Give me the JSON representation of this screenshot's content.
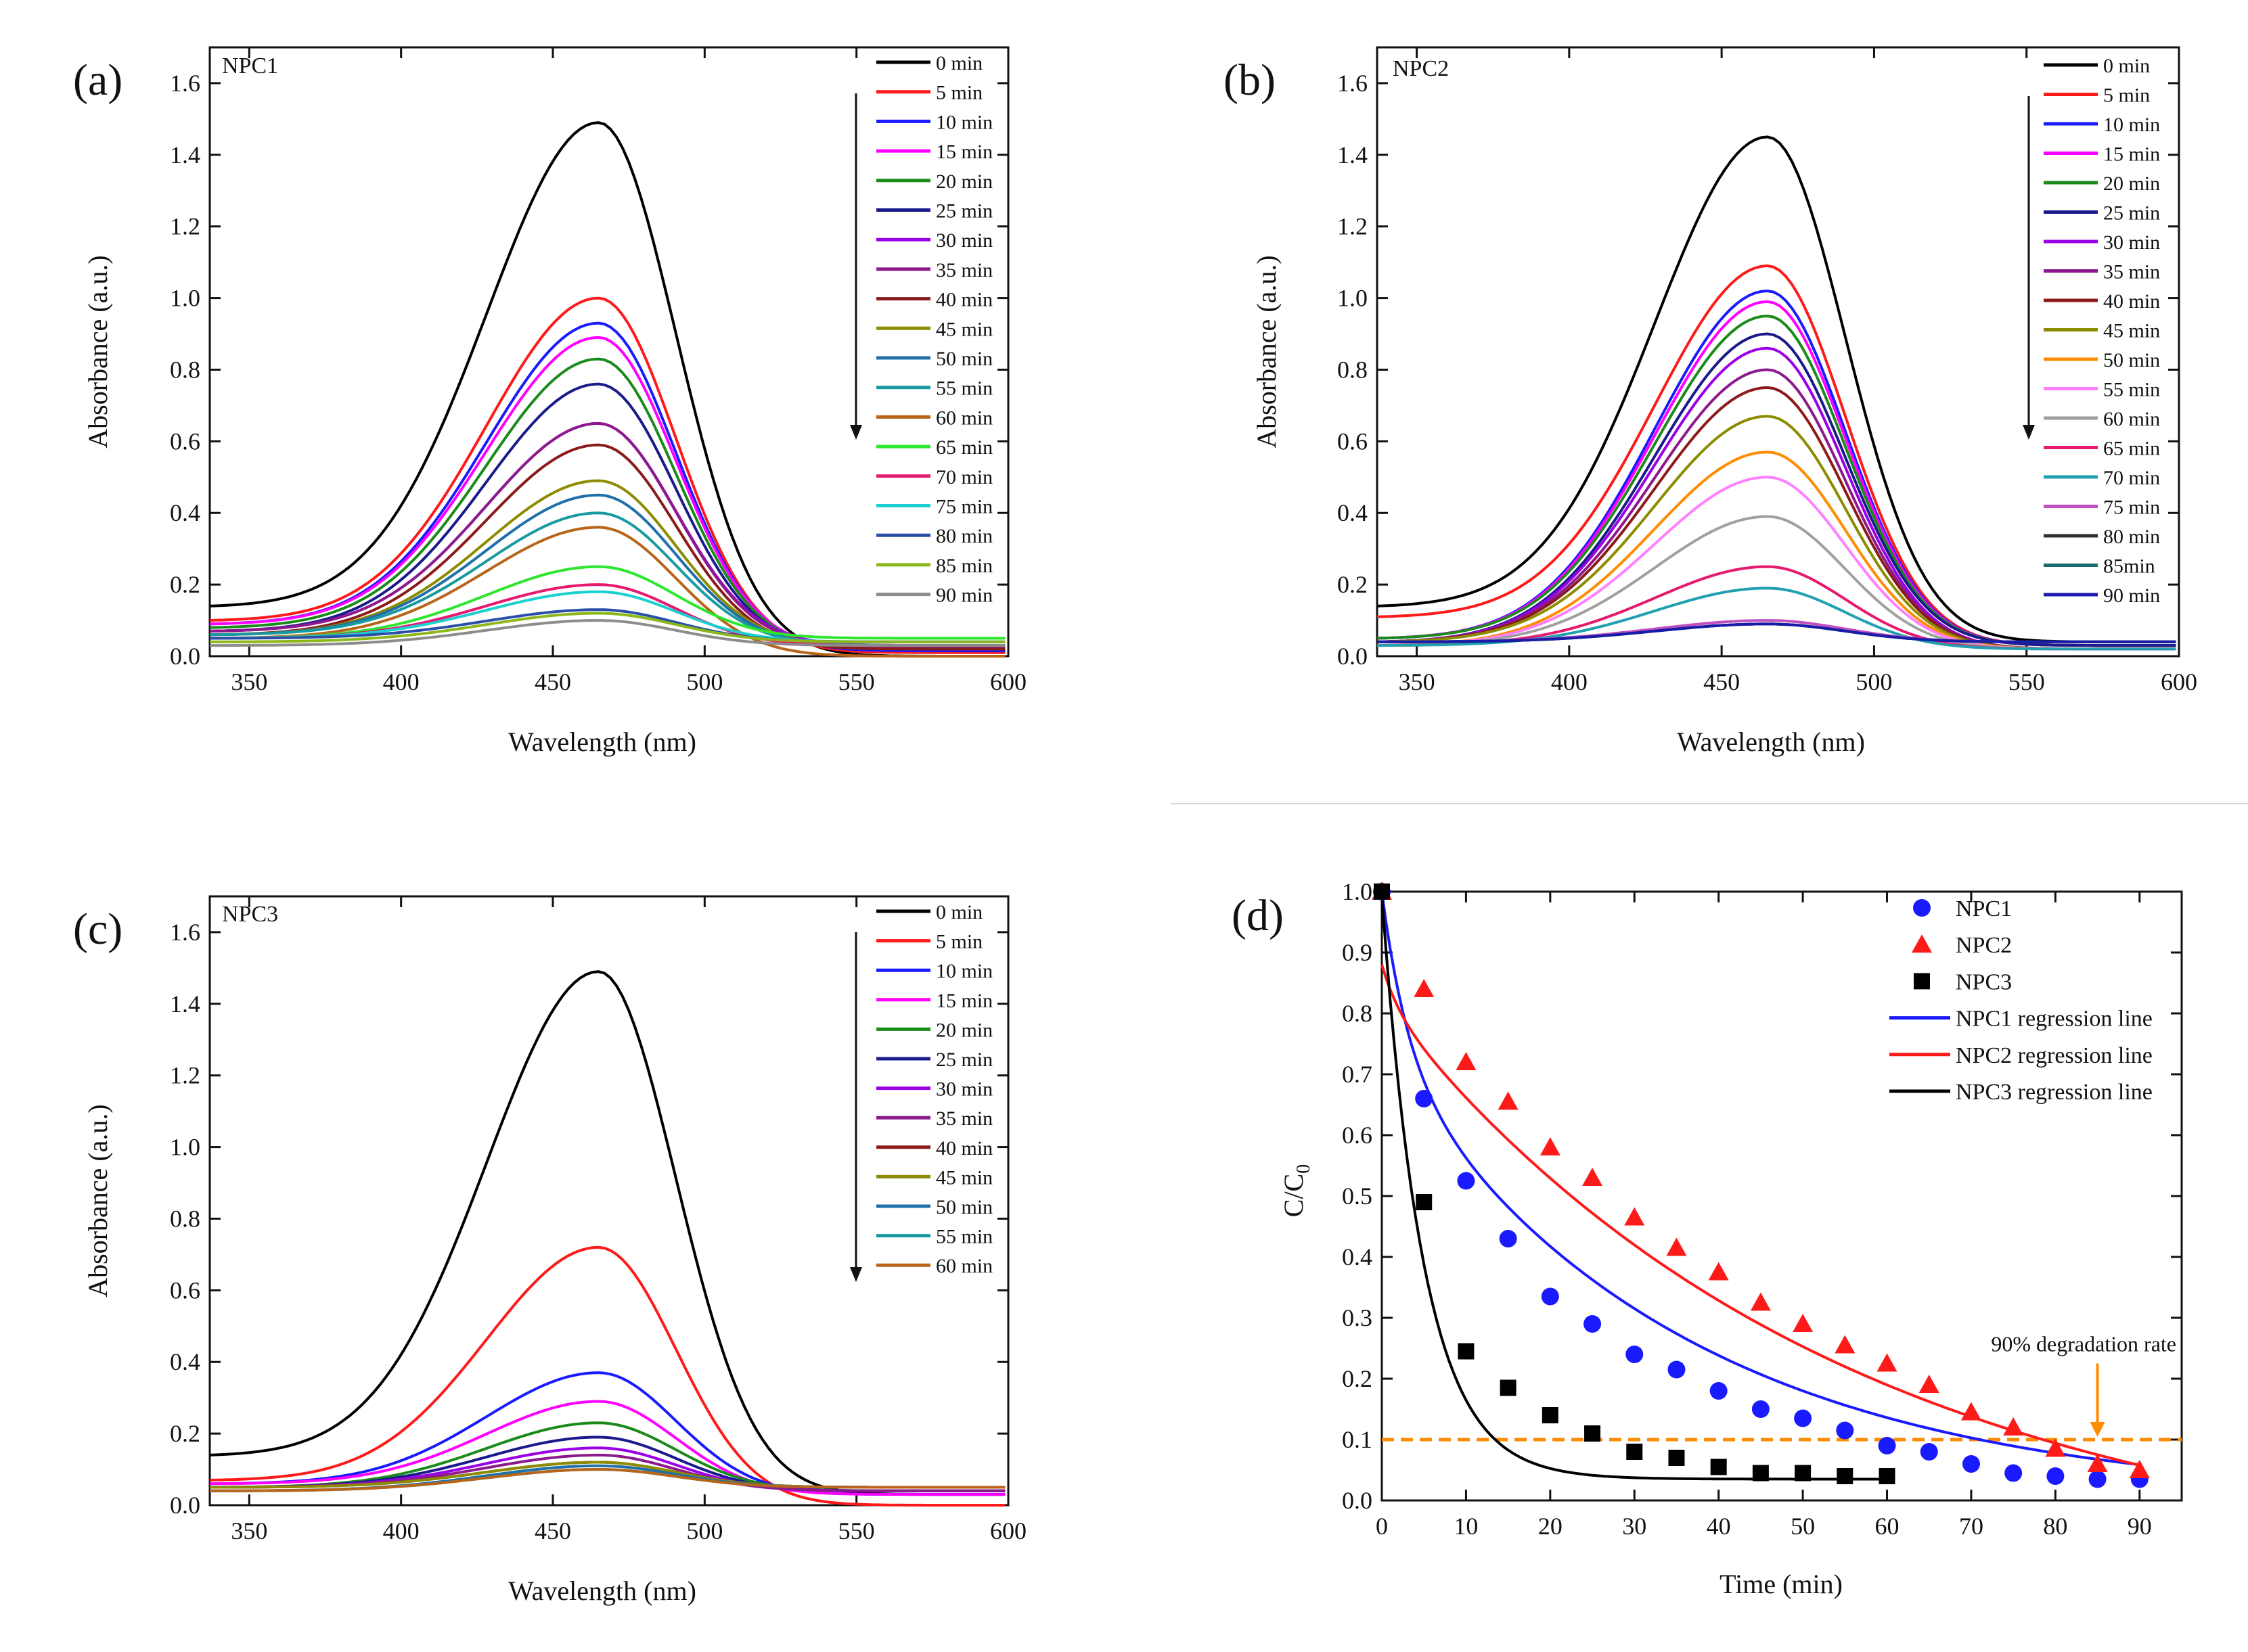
{
  "colors": {
    "c0": "#000000",
    "c5": "#ff1a1a",
    "c10": "#1a1aff",
    "c15": "#ff00ff",
    "c20": "#1a8a1a",
    "c25": "#1a1a8c",
    "c30": "#9a00e6",
    "c35": "#8c1a8c",
    "c40": "#8c1a1a",
    "c45": "#8c8c00",
    "c50": "#1f6fa8",
    "c55": "#1a9aa0",
    "c60": "#b8651a",
    "c65": "#2ee62e",
    "c70": "#e6196e",
    "c75": "#1ad0d0",
    "c80": "#2a4fa8",
    "c85": "#8cb81a",
    "c90": "#8c8c8c",
    "orange": "#ff8c00",
    "pink2": "#ff80ff",
    "gray2": "#a0a0a0",
    "teal2": "#20a0b0",
    "magenta2": "#c050c0",
    "dark80": "#303030",
    "teal85": "#1a6e6e",
    "blue90": "#1a1aaa"
  },
  "chart_data": [
    {
      "type": "line",
      "panel_label": "(a)",
      "title": "NPC1",
      "xlabel": "Wavelength (nm)",
      "ylabel": "Absorbance (a.u.)",
      "xlim": [
        337,
        600
      ],
      "ylim": [
        0,
        1.7
      ],
      "xticks": [
        "350",
        "400",
        "450",
        "500",
        "550",
        "600"
      ],
      "yticks": [
        "0.0",
        "0.2",
        "0.4",
        "0.6",
        "0.8",
        "1.0",
        "1.2",
        "1.4",
        "1.6"
      ],
      "peak_nm": 465,
      "series": [
        {
          "name": "0 min",
          "peak": 1.49,
          "base": 0.14,
          "tail": 0.0,
          "color": "#000000"
        },
        {
          "name": "5 min",
          "peak": 1.0,
          "base": 0.1,
          "tail": 0.01,
          "color": "#ff1a1a"
        },
        {
          "name": "10 min",
          "peak": 0.93,
          "base": 0.09,
          "tail": 0.015,
          "color": "#1a1aff"
        },
        {
          "name": "15 min",
          "peak": 0.89,
          "base": 0.09,
          "tail": 0.02,
          "color": "#ff00ff"
        },
        {
          "name": "20 min",
          "peak": 0.83,
          "base": 0.08,
          "tail": 0.02,
          "color": "#1a8a1a"
        },
        {
          "name": "25 min",
          "peak": 0.76,
          "base": 0.07,
          "tail": 0.02,
          "color": "#1a1a8c"
        },
        {
          "name": "30 min",
          "peak": 0.65,
          "base": 0.07,
          "tail": 0.03,
          "color": "#9a00e6"
        },
        {
          "name": "35 min",
          "peak": 0.65,
          "base": 0.07,
          "tail": 0.025,
          "color": "#8c1a8c"
        },
        {
          "name": "40 min",
          "peak": 0.59,
          "base": 0.06,
          "tail": 0.02,
          "color": "#8c1a1a"
        },
        {
          "name": "45 min",
          "peak": 0.49,
          "base": 0.06,
          "tail": 0.03,
          "color": "#8c8c00"
        },
        {
          "name": "50 min",
          "peak": 0.45,
          "base": 0.06,
          "tail": 0.03,
          "color": "#1f6fa8"
        },
        {
          "name": "55 min",
          "peak": 0.4,
          "base": 0.06,
          "tail": 0.03,
          "color": "#1a9aa0"
        },
        {
          "name": "60 min",
          "peak": 0.36,
          "base": 0.05,
          "tail": 0.0,
          "color": "#b8651a"
        },
        {
          "name": "65 min",
          "peak": 0.25,
          "base": 0.05,
          "tail": 0.05,
          "color": "#2ee62e"
        },
        {
          "name": "70 min",
          "peak": 0.2,
          "base": 0.05,
          "tail": 0.03,
          "color": "#e6196e"
        },
        {
          "name": "75 min",
          "peak": 0.18,
          "base": 0.05,
          "tail": 0.04,
          "color": "#1ad0d0"
        },
        {
          "name": "80 min",
          "peak": 0.13,
          "base": 0.05,
          "tail": 0.04,
          "color": "#2a4fa8"
        },
        {
          "name": "85 min",
          "peak": 0.12,
          "base": 0.04,
          "tail": 0.04,
          "color": "#8cb81a"
        },
        {
          "name": "90 min",
          "peak": 0.1,
          "base": 0.03,
          "tail": 0.03,
          "color": "#8c8c8c"
        }
      ]
    },
    {
      "type": "line",
      "panel_label": "(b)",
      "title": "NPC2",
      "xlabel": "Wavelength (nm)",
      "ylabel": "Absorbance (a.u.)",
      "xlim": [
        337,
        600
      ],
      "ylim": [
        0,
        1.7
      ],
      "xticks": [
        "350",
        "400",
        "450",
        "500",
        "550",
        "600"
      ],
      "yticks": [
        "0.0",
        "0.2",
        "0.4",
        "0.6",
        "0.8",
        "1.0",
        "1.2",
        "1.4",
        "1.6"
      ],
      "peak_nm": 465,
      "series": [
        {
          "name": "0 min",
          "peak": 1.45,
          "base": 0.14,
          "tail": 0.04,
          "color": "#000000"
        },
        {
          "name": "5 min",
          "peak": 1.09,
          "base": 0.11,
          "tail": 0.03,
          "color": "#ff1a1a"
        },
        {
          "name": "10 min",
          "peak": 1.02,
          "base": 0.05,
          "tail": 0.03,
          "color": "#1a1aff"
        },
        {
          "name": "15 min",
          "peak": 0.99,
          "base": 0.05,
          "tail": 0.03,
          "color": "#ff00ff"
        },
        {
          "name": "20 min",
          "peak": 0.95,
          "base": 0.05,
          "tail": 0.03,
          "color": "#1a8a1a"
        },
        {
          "name": "25 min",
          "peak": 0.9,
          "base": 0.04,
          "tail": 0.03,
          "color": "#1a1a8c"
        },
        {
          "name": "30 min",
          "peak": 0.86,
          "base": 0.04,
          "tail": 0.02,
          "color": "#9a00e6"
        },
        {
          "name": "35 min",
          "peak": 0.8,
          "base": 0.04,
          "tail": 0.02,
          "color": "#8c1a8c"
        },
        {
          "name": "40 min",
          "peak": 0.75,
          "base": 0.04,
          "tail": 0.02,
          "color": "#8c1a1a"
        },
        {
          "name": "45 min",
          "peak": 0.67,
          "base": 0.04,
          "tail": 0.02,
          "color": "#8c8c00"
        },
        {
          "name": "50 min",
          "peak": 0.57,
          "base": 0.03,
          "tail": 0.02,
          "color": "#ff8c00"
        },
        {
          "name": "55 min",
          "peak": 0.5,
          "base": 0.03,
          "tail": 0.02,
          "color": "#ff80ff"
        },
        {
          "name": "60 min",
          "peak": 0.39,
          "base": 0.03,
          "tail": 0.02,
          "color": "#a0a0a0"
        },
        {
          "name": "65 min",
          "peak": 0.25,
          "base": 0.03,
          "tail": 0.02,
          "color": "#e6196e"
        },
        {
          "name": "70 min",
          "peak": 0.19,
          "base": 0.03,
          "tail": 0.02,
          "color": "#20a0b0"
        },
        {
          "name": "75 min",
          "peak": 0.1,
          "base": 0.04,
          "tail": 0.04,
          "color": "#c050c0"
        },
        {
          "name": "80 min",
          "peak": 0.09,
          "base": 0.04,
          "tail": 0.04,
          "color": "#303030"
        },
        {
          "name": "85min",
          "peak": 0.09,
          "base": 0.04,
          "tail": 0.04,
          "color": "#1a6e6e"
        },
        {
          "name": "90 min",
          "peak": 0.09,
          "base": 0.04,
          "tail": 0.04,
          "color": "#1a1aaa"
        }
      ]
    },
    {
      "type": "line",
      "panel_label": "(c)",
      "title": "NPC3",
      "xlabel": "Wavelength (nm)",
      "ylabel": "Absorbance (a.u.)",
      "xlim": [
        337,
        600
      ],
      "ylim": [
        0,
        1.7
      ],
      "xticks": [
        "350",
        "400",
        "450",
        "500",
        "550",
        "600"
      ],
      "yticks": [
        "0.0",
        "0.2",
        "0.4",
        "0.6",
        "0.8",
        "1.0",
        "1.2",
        "1.4",
        "1.6"
      ],
      "peak_nm": 465,
      "series": [
        {
          "name": "0 min",
          "peak": 1.49,
          "base": 0.14,
          "tail": 0.03,
          "color": "#000000"
        },
        {
          "name": "5 min",
          "peak": 0.72,
          "base": 0.07,
          "tail": 0.0,
          "color": "#ff1a1a"
        },
        {
          "name": "10 min",
          "peak": 0.37,
          "base": 0.06,
          "tail": 0.03,
          "color": "#1a1aff"
        },
        {
          "name": "15 min",
          "peak": 0.29,
          "base": 0.06,
          "tail": 0.03,
          "color": "#ff00ff"
        },
        {
          "name": "20 min",
          "peak": 0.23,
          "base": 0.05,
          "tail": 0.04,
          "color": "#1a8a1a"
        },
        {
          "name": "25 min",
          "peak": 0.19,
          "base": 0.05,
          "tail": 0.04,
          "color": "#1a1a8c"
        },
        {
          "name": "30 min",
          "peak": 0.16,
          "base": 0.05,
          "tail": 0.04,
          "color": "#9a00e6"
        },
        {
          "name": "35 min",
          "peak": 0.14,
          "base": 0.05,
          "tail": 0.04,
          "color": "#8c1a8c"
        },
        {
          "name": "40 min",
          "peak": 0.12,
          "base": 0.05,
          "tail": 0.05,
          "color": "#8c1a1a"
        },
        {
          "name": "45 min",
          "peak": 0.12,
          "base": 0.05,
          "tail": 0.05,
          "color": "#8c8c00"
        },
        {
          "name": "50 min",
          "peak": 0.11,
          "base": 0.04,
          "tail": 0.05,
          "color": "#1f6fa8"
        },
        {
          "name": "55 min",
          "peak": 0.1,
          "base": 0.04,
          "tail": 0.05,
          "color": "#1a9aa0"
        },
        {
          "name": "60 min",
          "peak": 0.1,
          "base": 0.04,
          "tail": 0.05,
          "color": "#b8651a"
        }
      ]
    },
    {
      "type": "scatter",
      "panel_label": "(d)",
      "xlabel": "Time (min)",
      "ylabel": "C/C",
      "ylabel_sub": "0",
      "xlim": [
        0,
        95
      ],
      "ylim": [
        0,
        1.0
      ],
      "xticks": [
        "0",
        "10",
        "20",
        "30",
        "40",
        "50",
        "60",
        "70",
        "80",
        "90"
      ],
      "yticks": [
        "0.0",
        "0.1",
        "0.2",
        "0.3",
        "0.4",
        "0.5",
        "0.6",
        "0.7",
        "0.8",
        "0.9",
        "1.0"
      ],
      "threshold": {
        "y": 0.1,
        "label": "90% degradation rate",
        "arrow_x": 85,
        "color": "#ff8c00"
      },
      "series": [
        {
          "name": "NPC1",
          "marker": "circle",
          "color": "#1a1aff",
          "x": [
            0,
            5,
            10,
            15,
            20,
            25,
            30,
            35,
            40,
            45,
            50,
            55,
            60,
            65,
            70,
            75,
            80,
            85,
            90
          ],
          "y": [
            1.0,
            0.66,
            0.525,
            0.43,
            0.335,
            0.29,
            0.24,
            0.215,
            0.18,
            0.15,
            0.135,
            0.115,
            0.09,
            0.08,
            0.06,
            0.045,
            0.04,
            0.035,
            0.035
          ]
        },
        {
          "name": "NPC2",
          "marker": "triangle",
          "color": "#ff1a1a",
          "x": [
            0,
            5,
            10,
            15,
            20,
            25,
            30,
            35,
            40,
            45,
            50,
            55,
            60,
            65,
            70,
            75,
            80,
            85,
            90
          ],
          "y": [
            1.0,
            0.84,
            0.72,
            0.655,
            0.58,
            0.53,
            0.465,
            0.415,
            0.375,
            0.325,
            0.29,
            0.255,
            0.225,
            0.19,
            0.145,
            0.12,
            0.085,
            0.06,
            0.05
          ]
        },
        {
          "name": "NPC3",
          "marker": "square",
          "color": "#000000",
          "x": [
            0,
            5,
            10,
            15,
            20,
            25,
            30,
            35,
            40,
            45,
            50,
            55,
            60
          ],
          "y": [
            1.0,
            0.49,
            0.245,
            0.185,
            0.14,
            0.11,
            0.08,
            0.07,
            0.055,
            0.045,
            0.045,
            0.04,
            0.04
          ]
        }
      ],
      "regression": [
        {
          "name": "NPC1 regression line",
          "color": "#1a1aff",
          "a": 0.27,
          "k1": 0.32,
          "b": 0.73,
          "k2": 0.028,
          "c": 0.0,
          "x_end": 90
        },
        {
          "name": "NPC2 regression line",
          "color": "#ff1a1a",
          "a": 0.06,
          "k1": 0.5,
          "b": 0.94,
          "k2": 0.0185,
          "c": -0.12,
          "x_end": 90
        },
        {
          "name": "NPC3 regression line",
          "color": "#000000",
          "a": 0.96,
          "k1": 0.2,
          "b": 0.0,
          "k2": 0.0,
          "c": 0.035,
          "x_end": 60
        }
      ]
    }
  ]
}
